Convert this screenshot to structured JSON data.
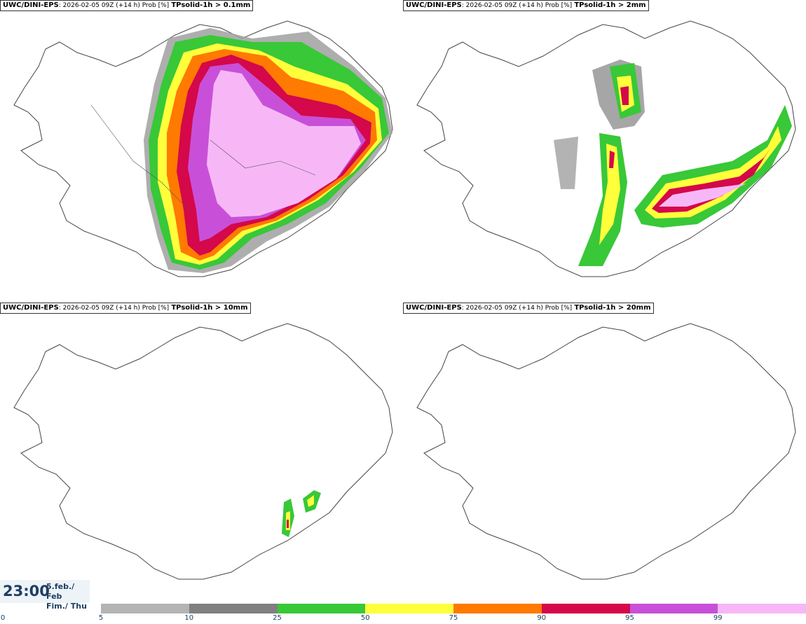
{
  "panels": [
    {
      "source": "UWC/DINI-EPS",
      "meta": ": 2026-02-05 09Z (+14 h) Prob [%]",
      "param": "TPsolid-1h > 0.1mm"
    },
    {
      "source": "UWC/DINI-EPS",
      "meta": ": 2026-02-05 09Z (+14 h) Prob [%]",
      "param": "TPsolid-1h > 2mm"
    },
    {
      "source": "UWC/DINI-EPS",
      "meta": ": 2026-02-05 09Z (+14 h) Prob [%]",
      "param": "TPsolid-1h > 10mm"
    },
    {
      "source": "UWC/DINI-EPS",
      "meta": ": 2026-02-05 09Z (+14 h) Prob [%]",
      "param": "TPsolid-1h > 20mm"
    }
  ],
  "time": {
    "clock": "23:00",
    "date_line1": "5.feb./ Feb",
    "date_line2": "Fim./ Thu"
  },
  "colorbar": {
    "ticks": [
      "0",
      "5",
      "10",
      "25",
      "50",
      "75",
      "90",
      "95",
      "99"
    ],
    "colors": [
      "#ffffff",
      "#b4b4b4",
      "#808080",
      "#38c838",
      "#ffff3c",
      "#ff7a00",
      "#d4084a",
      "#c850d8",
      "#f7b7f7"
    ]
  }
}
